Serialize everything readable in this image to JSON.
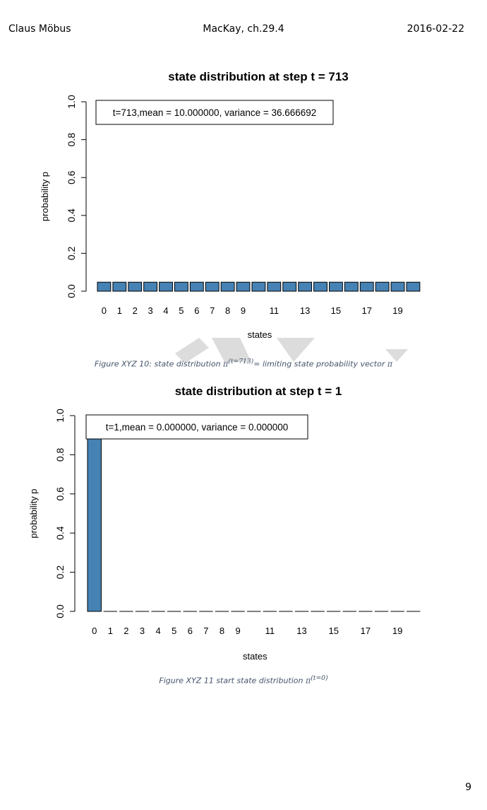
{
  "header": {
    "left": "Claus Möbus",
    "center": "MacKay, ch.29.4",
    "right": "2016-02-22"
  },
  "page_number": "9",
  "captions": [
    {
      "prefix": "Figure XYZ 10: state distribution ",
      "symbol": "π",
      "superscript": "(t=713)",
      "suffix": "= limiting state probability vector ",
      "tail_symbol": "π"
    },
    {
      "prefix": "Figure XYZ 11  start state distribution ",
      "symbol": "π",
      "superscript": "(t=0)",
      "suffix": "",
      "tail_symbol": ""
    }
  ],
  "colors": {
    "bar": "#4682b4",
    "bar_edge": "#000000",
    "watermark": "#dcdcdc"
  },
  "chart_data": [
    {
      "type": "bar",
      "title": "state distribution at step t = 713",
      "xlabel": "states",
      "ylabel": "probability p",
      "ylim": [
        0,
        1
      ],
      "yticks": [
        "0.0",
        "0.2",
        "0.4",
        "0.6",
        "0.8",
        "1.0"
      ],
      "categories": [
        "0",
        "1",
        "2",
        "3",
        "4",
        "5",
        "6",
        "7",
        "8",
        "9",
        "10",
        "11",
        "12",
        "13",
        "14",
        "15",
        "16",
        "17",
        "18",
        "19",
        "20"
      ],
      "shown_tick_labels": [
        "0",
        "1",
        "2",
        "3",
        "4",
        "5",
        "6",
        "7",
        "8",
        "9",
        "11",
        "13",
        "15",
        "17",
        "19"
      ],
      "values": [
        0.047619,
        0.047619,
        0.047619,
        0.047619,
        0.047619,
        0.047619,
        0.047619,
        0.047619,
        0.047619,
        0.047619,
        0.047619,
        0.047619,
        0.047619,
        0.047619,
        0.047619,
        0.047619,
        0.047619,
        0.047619,
        0.047619,
        0.047619,
        0.047619
      ],
      "legend": "t=713,mean = 10.000000, variance = 36.666692",
      "legend_position": "top-left",
      "grid": false
    },
    {
      "type": "bar",
      "title": "state distribution at step t = 1",
      "xlabel": "states",
      "ylabel": "probability p",
      "ylim": [
        0,
        1
      ],
      "yticks": [
        "0.0",
        "0.2",
        "0.4",
        "0.6",
        "0.8",
        "1.0"
      ],
      "categories": [
        "0",
        "1",
        "2",
        "3",
        "4",
        "5",
        "6",
        "7",
        "8",
        "9",
        "10",
        "11",
        "12",
        "13",
        "14",
        "15",
        "16",
        "17",
        "18",
        "19",
        "20"
      ],
      "shown_tick_labels": [
        "0",
        "1",
        "2",
        "3",
        "4",
        "5",
        "6",
        "7",
        "8",
        "9",
        "11",
        "13",
        "15",
        "17",
        "19"
      ],
      "values": [
        1,
        0,
        0,
        0,
        0,
        0,
        0,
        0,
        0,
        0,
        0,
        0,
        0,
        0,
        0,
        0,
        0,
        0,
        0,
        0,
        0
      ],
      "legend": "t=1,mean = 0.000000, variance = 0.000000",
      "legend_position": "top-left",
      "grid": false
    }
  ]
}
